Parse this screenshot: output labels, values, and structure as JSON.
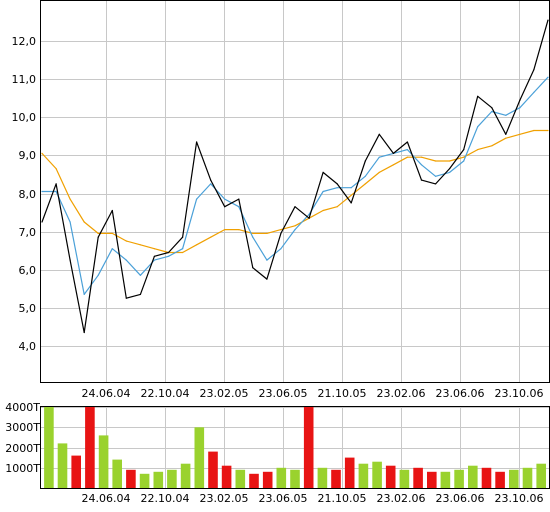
{
  "colors": {
    "price": "#000000",
    "ma_short": "#4aa0d8",
    "ma_long": "#f0a000",
    "volume_up": "#9ad22e",
    "volume_down": "#e81414",
    "grid": "#c8c8c8"
  },
  "chart_data": [
    {
      "type": "line",
      "title": "",
      "xlabel": "",
      "ylabel": "",
      "ylim": [
        3.0,
        13.0
      ],
      "y_ticks": [
        "4,0",
        "5,0",
        "6,0",
        "7,0",
        "8,0",
        "9,0",
        "10,0",
        "11,0",
        "12,0"
      ],
      "x_ticks": [
        "24.06.04",
        "22.10.04",
        "23.02.05",
        "23.06.05",
        "21.10.05",
        "23.02.06",
        "23.06.06",
        "23.10.06"
      ],
      "grid": true,
      "x": [
        "2004-02",
        "2004-03",
        "2004-04",
        "2004-05",
        "2004-06",
        "2004-07",
        "2004-08",
        "2004-09",
        "2004-10",
        "2004-11",
        "2004-12",
        "2005-01",
        "2005-02",
        "2005-03",
        "2005-04",
        "2005-05",
        "2005-06",
        "2005-07",
        "2005-08",
        "2005-09",
        "2005-10",
        "2005-11",
        "2005-12",
        "2006-01",
        "2006-02",
        "2006-03",
        "2006-04",
        "2006-05",
        "2006-06",
        "2006-07",
        "2006-08",
        "2006-09",
        "2006-10",
        "2006-11",
        "2006-12",
        "2007-01",
        "2007-02"
      ],
      "series": [
        {
          "values": [
            7.2,
            8.2,
            6.2,
            4.3,
            6.8,
            7.5,
            5.2,
            5.3,
            6.3,
            6.4,
            6.8,
            9.3,
            8.3,
            7.6,
            7.8,
            6.0,
            5.7,
            6.9,
            7.6,
            7.3,
            8.5,
            8.2,
            7.7,
            8.8,
            9.5,
            9.0,
            9.3,
            8.3,
            8.2,
            8.6,
            9.1,
            10.5,
            10.2,
            9.5,
            10.4,
            11.2,
            12.5
          ]
        },
        {
          "values": [
            8.0,
            8.0,
            7.2,
            5.3,
            5.8,
            6.5,
            6.2,
            5.8,
            6.2,
            6.3,
            6.5,
            7.8,
            8.2,
            7.8,
            7.6,
            6.8,
            6.2,
            6.5,
            7.0,
            7.4,
            8.0,
            8.1,
            8.1,
            8.4,
            8.9,
            9.0,
            9.1,
            8.7,
            8.4,
            8.5,
            8.8,
            9.7,
            10.1,
            10.0,
            10.2,
            10.6,
            11.0
          ]
        },
        {
          "values": [
            9.0,
            8.6,
            7.8,
            7.2,
            6.9,
            6.9,
            6.7,
            6.6,
            6.5,
            6.4,
            6.4,
            6.6,
            6.8,
            7.0,
            7.0,
            6.9,
            6.9,
            7.0,
            7.1,
            7.3,
            7.5,
            7.6,
            7.9,
            8.2,
            8.5,
            8.7,
            8.9,
            8.9,
            8.8,
            8.8,
            8.9,
            9.1,
            9.2,
            9.4,
            9.5,
            9.6,
            9.6
          ]
        }
      ]
    },
    {
      "type": "bar",
      "title": "",
      "xlabel": "",
      "ylabel": "",
      "ylim": [
        0,
        4000
      ],
      "y_ticks": [
        "1000T",
        "2000T",
        "3000T",
        "4000T"
      ],
      "x_ticks": [
        "24.06.04",
        "22.10.04",
        "23.02.05",
        "23.06.05",
        "21.10.05",
        "23.02.06",
        "23.06.06",
        "23.10.06"
      ],
      "grid": true,
      "x": [
        "2004-02",
        "2004-03",
        "2004-04",
        "2004-05",
        "2004-06",
        "2004-07",
        "2004-08",
        "2004-09",
        "2004-10",
        "2004-11",
        "2004-12",
        "2005-01",
        "2005-02",
        "2005-03",
        "2005-04",
        "2005-05",
        "2005-06",
        "2005-07",
        "2005-08",
        "2005-09",
        "2005-10",
        "2005-11",
        "2005-12",
        "2006-01",
        "2006-02",
        "2006-03",
        "2006-04",
        "2006-05",
        "2006-06",
        "2006-07",
        "2006-08",
        "2006-09",
        "2006-10",
        "2006-11",
        "2006-12",
        "2007-01",
        "2007-02"
      ],
      "values": [
        4000,
        2200,
        1600,
        4000,
        2600,
        1400,
        900,
        700,
        800,
        900,
        1200,
        3000,
        1800,
        1100,
        900,
        700,
        800,
        1000,
        900,
        4000,
        1000,
        900,
        1500,
        1200,
        1300,
        1100,
        900,
        1000,
        800,
        800,
        900,
        1100,
        1000,
        800,
        900,
        1000,
        1200
      ]
    }
  ]
}
